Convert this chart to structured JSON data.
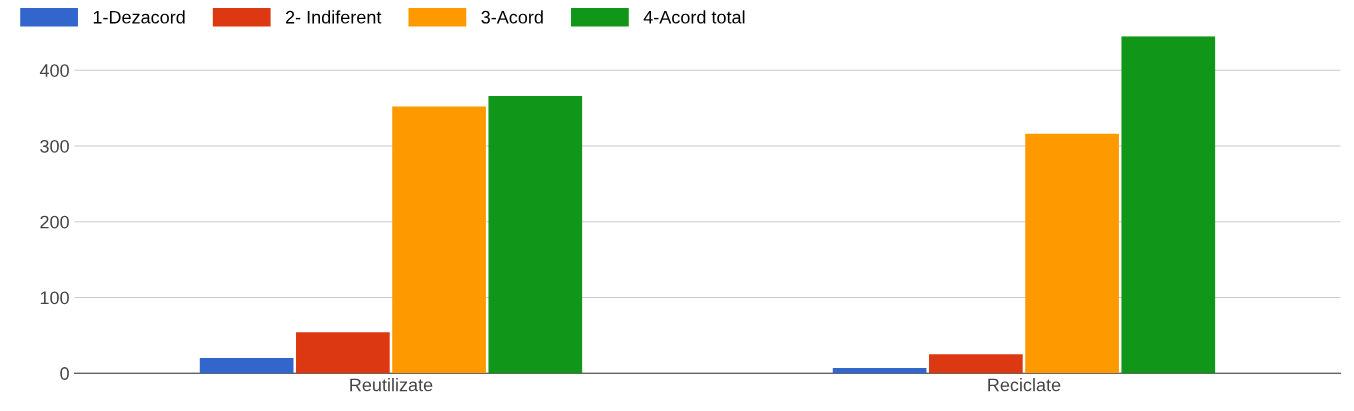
{
  "chart_data": {
    "type": "bar",
    "categories": [
      "Reutilizate",
      "Reciclate"
    ],
    "series": [
      {
        "name": "1-Dezacord",
        "color": "#3366cc",
        "values": [
          20,
          7
        ]
      },
      {
        "name": "2- Indiferent",
        "color": "#dc3912",
        "values": [
          54,
          25
        ]
      },
      {
        "name": "3-Acord",
        "color": "#ff9900",
        "values": [
          352,
          316
        ]
      },
      {
        "name": "4-Acord total",
        "color": "#109618",
        "values": [
          366,
          445
        ]
      }
    ],
    "ylim": [
      0,
      445
    ],
    "yticks": [
      0,
      100,
      200,
      300,
      400
    ],
    "grid": "y",
    "legend": "top left"
  }
}
